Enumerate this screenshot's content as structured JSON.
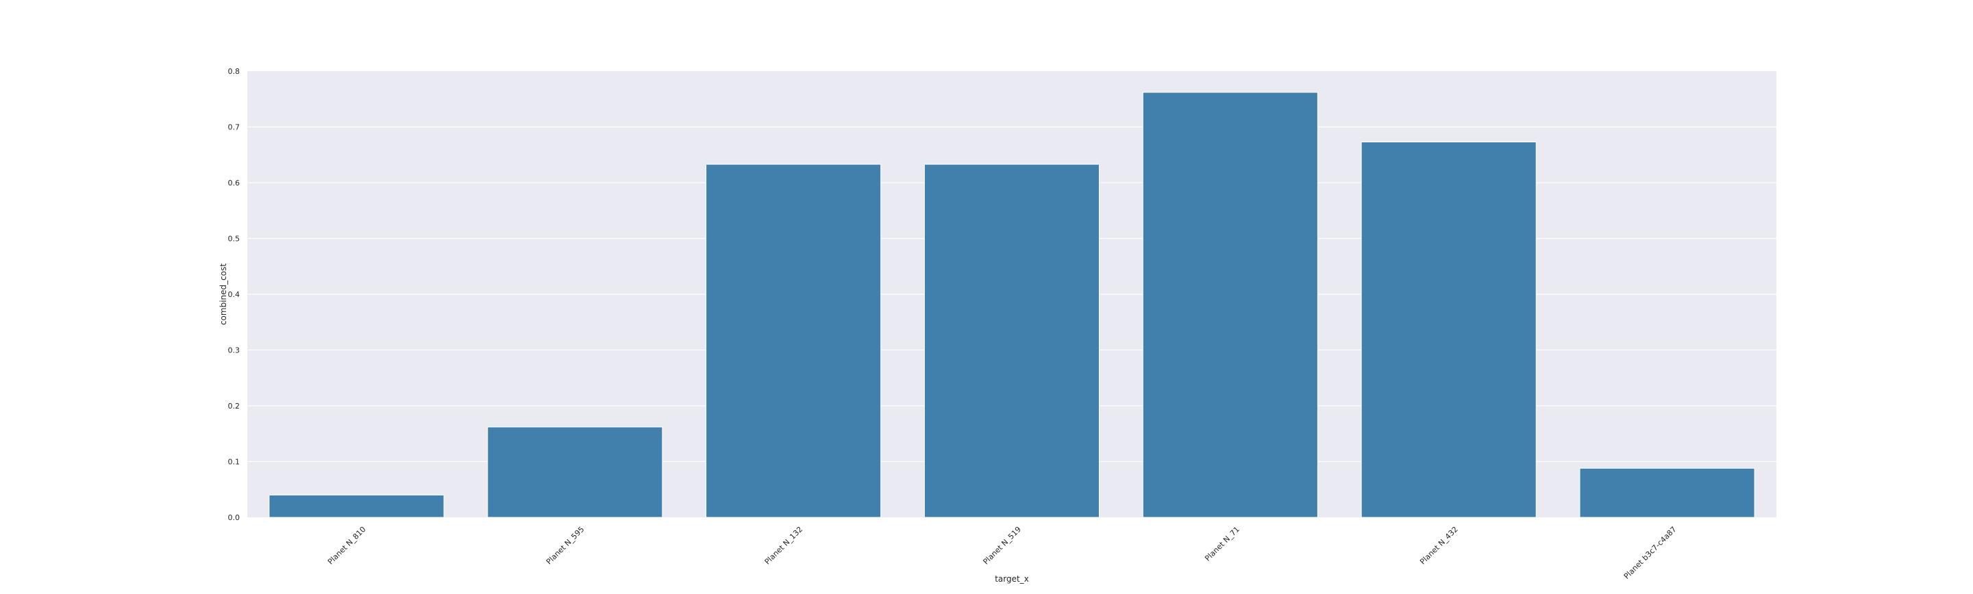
{
  "chart_data": {
    "type": "bar",
    "title": "",
    "xlabel": "target_x",
    "ylabel": "combined_cost",
    "categories": [
      "Planet N_810",
      "Planet N_595",
      "Planet N_132",
      "Planet N_519",
      "Planet N_71",
      "Planet N_432",
      "Planet b3c7-c4a87"
    ],
    "values": [
      0.04,
      0.162,
      0.633,
      0.633,
      0.762,
      0.673,
      0.088
    ],
    "ylim": [
      0,
      0.8
    ],
    "yticks": [
      0.0,
      0.1,
      0.2,
      0.3,
      0.4,
      0.5,
      0.6,
      0.7,
      0.8
    ],
    "ytick_labels": [
      "0.0",
      "0.1",
      "0.2",
      "0.3",
      "0.4",
      "0.5",
      "0.6",
      "0.7",
      "0.8"
    ],
    "grid": true,
    "legend": false,
    "colors": {
      "bar": "#4180ac",
      "plot_background": "#eaeaf2",
      "grid": "#ffffff",
      "text": "#262626"
    }
  }
}
